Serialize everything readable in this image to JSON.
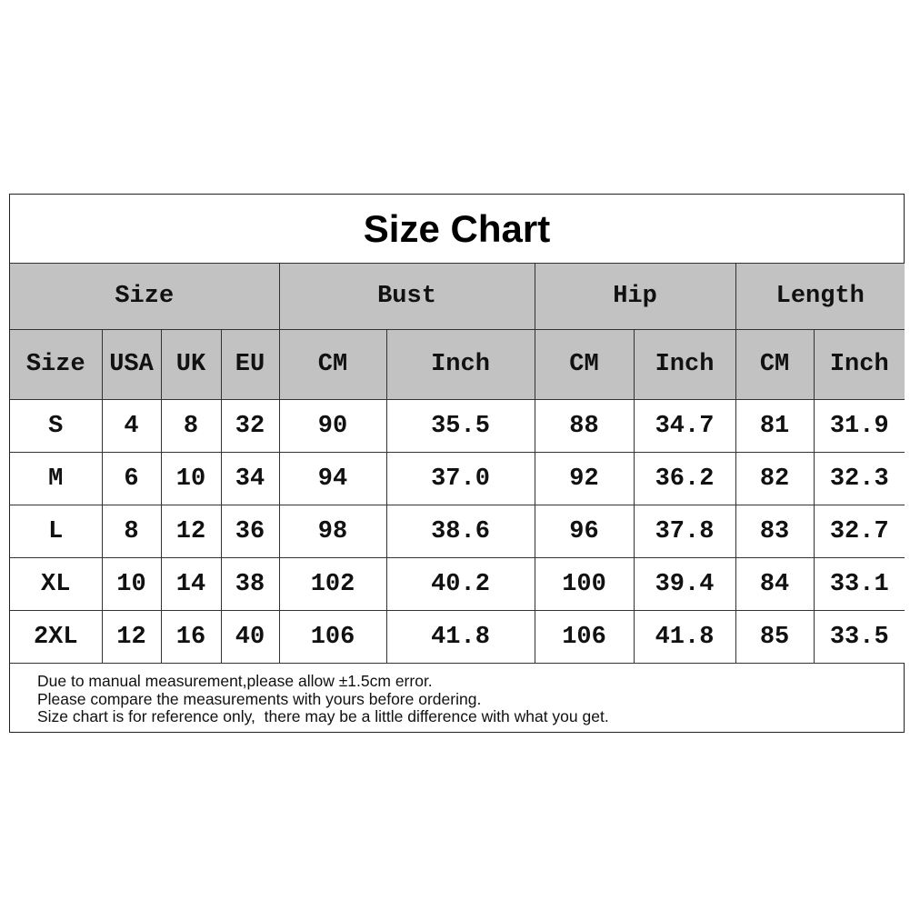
{
  "title": "Size Chart",
  "group_headers": [
    "Size",
    "Bust",
    "Hip",
    "Length"
  ],
  "sub_headers": [
    "Size",
    "USA",
    "UK",
    "EU",
    "CM",
    "Inch",
    "CM",
    "Inch",
    "CM",
    "Inch"
  ],
  "rows": [
    [
      "S",
      "4",
      "8",
      "32",
      "90",
      "35.5",
      "88",
      "34.7",
      "81",
      "31.9"
    ],
    [
      "M",
      "6",
      "10",
      "34",
      "94",
      "37.0",
      "92",
      "36.2",
      "82",
      "32.3"
    ],
    [
      "L",
      "8",
      "12",
      "36",
      "98",
      "38.6",
      "96",
      "37.8",
      "83",
      "32.7"
    ],
    [
      "XL",
      "10",
      "14",
      "38",
      "102",
      "40.2",
      "100",
      "39.4",
      "84",
      "33.1"
    ],
    [
      "2XL",
      "12",
      "16",
      "40",
      "106",
      "41.8",
      "106",
      "41.8",
      "85",
      "33.5"
    ]
  ],
  "notes": [
    "Due to manual measurement,please allow ±1.5cm error.",
    "Please compare the measurements with yours before ordering.",
    "Size chart is for reference only,  there may be a little difference with what you get."
  ],
  "colors": {
    "header_bg": "#c2c2c2",
    "border": "#333333"
  }
}
